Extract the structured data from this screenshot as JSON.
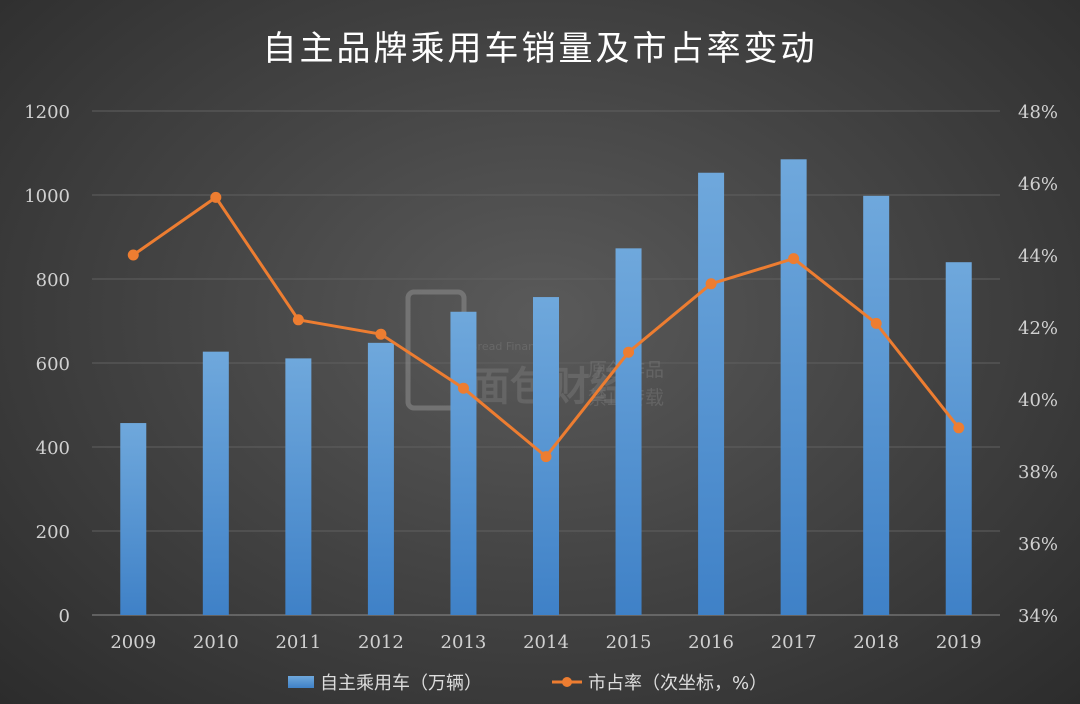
{
  "chart_data": {
    "type": "bar",
    "title": "自主品牌乘用车销量及市占率变动",
    "categories": [
      "2009",
      "2010",
      "2011",
      "2012",
      "2013",
      "2014",
      "2015",
      "2016",
      "2017",
      "2018",
      "2019"
    ],
    "series": [
      {
        "name": "自主乘用车（万辆）",
        "type": "bar",
        "axis": "left",
        "color": "#5b9bd5",
        "values": [
          457,
          627,
          611,
          648,
          722,
          757,
          873,
          1053,
          1085,
          998,
          840
        ]
      },
      {
        "name": "市占率（次坐标，%）",
        "type": "line",
        "axis": "right",
        "color": "#ed7d31",
        "values": [
          44.0,
          45.6,
          42.2,
          41.8,
          40.3,
          38.4,
          41.3,
          43.2,
          43.9,
          42.1,
          39.2
        ]
      }
    ],
    "y_left": {
      "min": 0,
      "max": 1200,
      "ticks": [
        "0",
        "200",
        "400",
        "600",
        "800",
        "1000",
        "1200"
      ]
    },
    "y_right": {
      "min": 34,
      "max": 48,
      "ticks": [
        "34%",
        "36%",
        "38%",
        "40%",
        "42%",
        "44%",
        "46%",
        "48%"
      ]
    },
    "grid": true,
    "legend_position": "bottom"
  },
  "watermark": {
    "en": "Bread Finance",
    "cn": "面包财经",
    "line1": "原创作品",
    "line2": "禁止转载"
  }
}
